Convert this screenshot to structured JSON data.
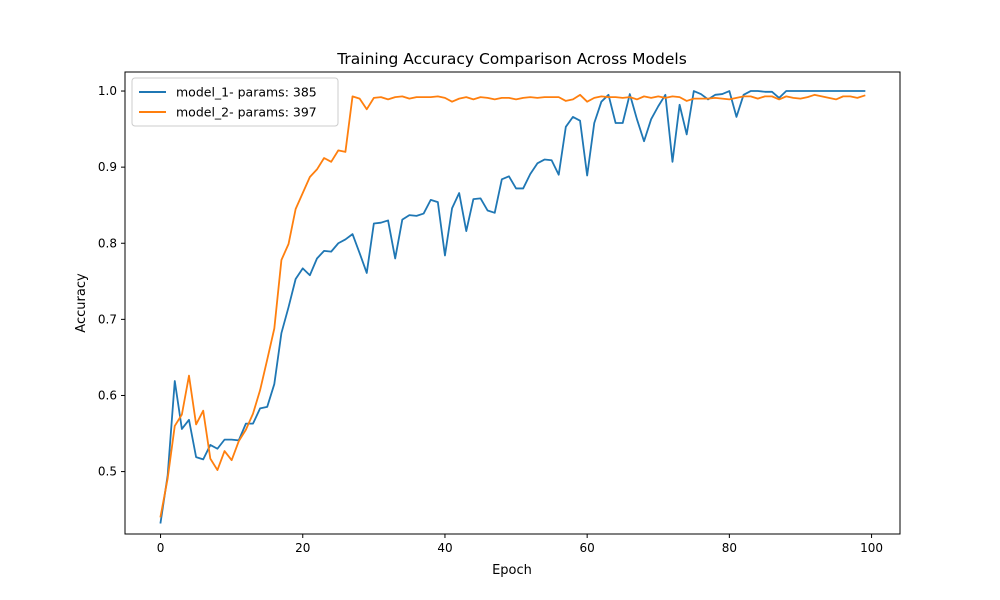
{
  "chart_data": {
    "type": "line",
    "title": "Training Accuracy Comparison Across Models",
    "xlabel": "Epoch",
    "ylabel": "Accuracy",
    "xlim": [
      -5,
      104
    ],
    "ylim": [
      0.418,
      1.025
    ],
    "xticks": [
      0,
      20,
      40,
      60,
      80,
      100
    ],
    "yticks": [
      0.5,
      0.6,
      0.7,
      0.8,
      0.9,
      1.0
    ],
    "grid": false,
    "legend_position": "top-left",
    "x": [
      0,
      1,
      2,
      3,
      4,
      5,
      6,
      7,
      8,
      9,
      10,
      11,
      12,
      13,
      14,
      15,
      16,
      17,
      18,
      19,
      20,
      21,
      22,
      23,
      24,
      25,
      26,
      27,
      28,
      29,
      30,
      31,
      32,
      33,
      34,
      35,
      36,
      37,
      38,
      39,
      40,
      41,
      42,
      43,
      44,
      45,
      46,
      47,
      48,
      49,
      50,
      51,
      52,
      53,
      54,
      55,
      56,
      57,
      58,
      59,
      60,
      61,
      62,
      63,
      64,
      65,
      66,
      67,
      68,
      69,
      70,
      71,
      72,
      73,
      74,
      75,
      76,
      77,
      78,
      79,
      80,
      81,
      82,
      83,
      84,
      85,
      86,
      87,
      88,
      89,
      90,
      91,
      92,
      93,
      94,
      95,
      96,
      97,
      98,
      99
    ],
    "series": [
      {
        "name": "model_1- params: 385",
        "color": "#1f77b4",
        "values": [
          0.433,
          0.495,
          0.619,
          0.556,
          0.568,
          0.519,
          0.516,
          0.535,
          0.53,
          0.542,
          0.542,
          0.541,
          0.563,
          0.563,
          0.583,
          0.585,
          0.615,
          0.682,
          0.716,
          0.753,
          0.767,
          0.758,
          0.78,
          0.79,
          0.789,
          0.8,
          0.805,
          0.812,
          0.787,
          0.761,
          0.826,
          0.827,
          0.83,
          0.78,
          0.831,
          0.837,
          0.836,
          0.839,
          0.857,
          0.854,
          0.784,
          0.846,
          0.866,
          0.816,
          0.858,
          0.859,
          0.843,
          0.84,
          0.884,
          0.888,
          0.872,
          0.872,
          0.891,
          0.905,
          0.91,
          0.909,
          0.89,
          0.953,
          0.966,
          0.961,
          0.889,
          0.958,
          0.986,
          0.995,
          0.958,
          0.958,
          0.996,
          0.963,
          0.934,
          0.963,
          0.98,
          0.995,
          0.907,
          0.982,
          0.943,
          1.0,
          0.996,
          0.989,
          0.995,
          0.996,
          1.0,
          0.966,
          0.995,
          1.0,
          1.0,
          0.999,
          0.999,
          0.991,
          1.0,
          1.0,
          1.0,
          1.0,
          1.0,
          1.0,
          1.0,
          1.0,
          1.0,
          1.0,
          1.0,
          1.0
        ]
      },
      {
        "name": "model_2- params: 397",
        "color": "#ff7f0e",
        "values": [
          0.441,
          0.491,
          0.56,
          0.575,
          0.626,
          0.562,
          0.58,
          0.517,
          0.502,
          0.527,
          0.515,
          0.54,
          0.555,
          0.576,
          0.607,
          0.647,
          0.688,
          0.778,
          0.799,
          0.845,
          0.866,
          0.887,
          0.897,
          0.912,
          0.907,
          0.922,
          0.92,
          0.993,
          0.99,
          0.976,
          0.991,
          0.992,
          0.989,
          0.992,
          0.993,
          0.99,
          0.992,
          0.992,
          0.992,
          0.993,
          0.991,
          0.986,
          0.99,
          0.992,
          0.989,
          0.992,
          0.991,
          0.989,
          0.991,
          0.991,
          0.989,
          0.991,
          0.992,
          0.991,
          0.992,
          0.992,
          0.992,
          0.987,
          0.989,
          0.995,
          0.986,
          0.991,
          0.993,
          0.992,
          0.992,
          0.991,
          0.992,
          0.989,
          0.993,
          0.991,
          0.993,
          0.991,
          0.993,
          0.992,
          0.987,
          0.99,
          0.99,
          0.99,
          0.991,
          0.99,
          0.989,
          0.991,
          0.993,
          0.993,
          0.99,
          0.993,
          0.993,
          0.989,
          0.993,
          0.991,
          0.99,
          0.992,
          0.995,
          0.993,
          0.991,
          0.989,
          0.993,
          0.993,
          0.991,
          0.994
        ]
      }
    ]
  }
}
